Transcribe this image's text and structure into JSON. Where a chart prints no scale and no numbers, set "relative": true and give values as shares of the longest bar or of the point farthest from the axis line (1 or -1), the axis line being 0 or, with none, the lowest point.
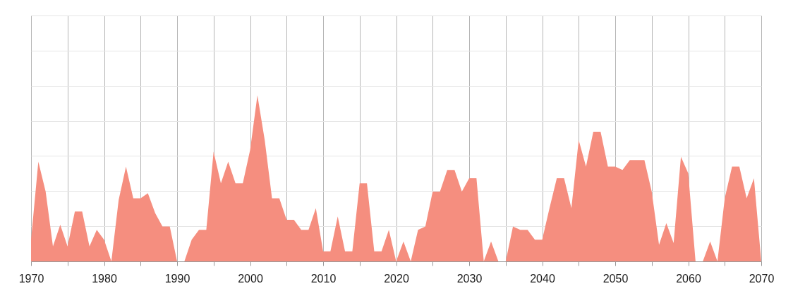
{
  "chart_data": {
    "type": "area",
    "relative": true,
    "color": "#f58e7f",
    "grid": true,
    "x": [
      1970,
      1971,
      1972,
      1973,
      1974,
      1975,
      1976,
      1977,
      1978,
      1979,
      1980,
      1981,
      1982,
      1983,
      1984,
      1985,
      1986,
      1987,
      1988,
      1989,
      1990,
      1991,
      1992,
      1993,
      1994,
      1995,
      1996,
      1997,
      1998,
      1999,
      2000,
      2001,
      2002,
      2003,
      2004,
      2005,
      2006,
      2007,
      2008,
      2009,
      2010,
      2011,
      2012,
      2013,
      2014,
      2015,
      2016,
      2017,
      2018,
      2019,
      2020,
      2021,
      2022,
      2023,
      2024,
      2025,
      2026,
      2027,
      2028,
      2029,
      2030,
      2031,
      2032,
      2033,
      2034,
      2035,
      2036,
      2037,
      2038,
      2039,
      2040,
      2041,
      2042,
      2043,
      2044,
      2045,
      2046,
      2047,
      2048,
      2049,
      2050,
      2051,
      2052,
      2053,
      2054,
      2055,
      2056,
      2057,
      2058,
      2059,
      2060,
      2061,
      2062,
      2063,
      2064,
      2065,
      2066,
      2067,
      2068,
      2069,
      2070
    ],
    "values": [
      0.13,
      0.6,
      0.42,
      0.09,
      0.22,
      0.09,
      0.3,
      0.3,
      0.09,
      0.19,
      0.13,
      0,
      0.37,
      0.57,
      0.38,
      0.38,
      0.41,
      0.29,
      0.21,
      0.21,
      0,
      0,
      0.13,
      0.19,
      0.19,
      0.66,
      0.47,
      0.6,
      0.47,
      0.47,
      0.67,
      1,
      0.73,
      0.38,
      0.38,
      0.25,
      0.25,
      0.19,
      0.19,
      0.32,
      0.06,
      0.06,
      0.27,
      0.06,
      0.06,
      0.47,
      0.47,
      0.06,
      0.06,
      0.19,
      0,
      0.12,
      0,
      0.19,
      0.21,
      0.42,
      0.42,
      0.55,
      0.55,
      0.42,
      0.5,
      0.5,
      0,
      0.12,
      0,
      0,
      0.21,
      0.19,
      0.19,
      0.13,
      0.13,
      0.32,
      0.5,
      0.5,
      0.32,
      0.73,
      0.57,
      0.78,
      0.78,
      0.57,
      0.57,
      0.55,
      0.61,
      0.61,
      0.61,
      0.42,
      0.1,
      0.23,
      0.11,
      0.63,
      0.53,
      0,
      0,
      0.12,
      0,
      0.38,
      0.57,
      0.57,
      0.38,
      0.5,
      0
    ],
    "xlim": [
      1970,
      2070
    ],
    "xticks": [
      1970,
      {
        "value": 1975,
        "label": null
      },
      1980,
      {
        "value": 1985,
        "label": null
      },
      1990,
      {
        "value": 1995,
        "label": null
      },
      2000,
      {
        "value": 2005,
        "label": null
      },
      2010,
      {
        "value": 2015,
        "label": null
      },
      2020,
      {
        "value": 2025,
        "label": null
      },
      2030,
      {
        "value": 2035,
        "label": null
      },
      2040,
      {
        "value": 2045,
        "label": null
      },
      2050,
      {
        "value": 2055,
        "label": null
      },
      2060,
      {
        "value": 2065,
        "label": null
      },
      2070
    ]
  }
}
